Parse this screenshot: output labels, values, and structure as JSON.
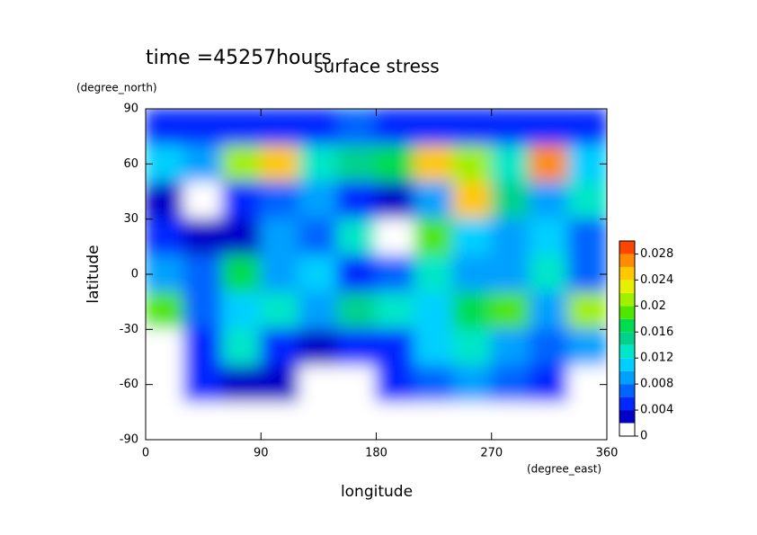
{
  "chart_data": {
    "type": "heatmap",
    "title": "surface stress",
    "subtitle": "time =45257hours",
    "x_label": "longitude",
    "x_unit": "(degree_east)",
    "y_label": "latitude",
    "y_unit": "(degree_north)",
    "x": [
      15,
      45,
      75,
      105,
      135,
      165,
      195,
      225,
      255,
      285,
      315,
      345
    ],
    "y": [
      80,
      60,
      40,
      20,
      0,
      -20,
      -40,
      -60,
      -80
    ],
    "z": [
      [
        0.004,
        0.004,
        0.004,
        0.004,
        0.004,
        0.006,
        0.004,
        0.004,
        0.004,
        0.004,
        0.004,
        0.004
      ],
      [
        0.01,
        0.008,
        0.02,
        0.024,
        0.012,
        0.014,
        0.016,
        0.024,
        0.02,
        0.012,
        0.026,
        0.01
      ],
      [
        0.002,
        0.001,
        0.004,
        0.006,
        0.008,
        0.004,
        0.002,
        0.008,
        0.024,
        0.014,
        0.008,
        0.012
      ],
      [
        0.004,
        0.003,
        0.002,
        0.008,
        0.006,
        0.012,
        0.001,
        0.018,
        0.01,
        0.008,
        0.01,
        0.006
      ],
      [
        0.008,
        0.006,
        0.016,
        0.008,
        0.01,
        0.004,
        0.006,
        0.012,
        0.008,
        0.008,
        0.012,
        0.006
      ],
      [
        0.018,
        0.006,
        0.01,
        0.012,
        0.008,
        0.014,
        0.012,
        0.01,
        0.016,
        0.018,
        0.008,
        0.02
      ],
      [
        0.001,
        0.004,
        0.012,
        0.004,
        0.002,
        0.004,
        0.004,
        0.01,
        0.012,
        0.008,
        0.006,
        0.008
      ],
      [
        0,
        0.004,
        0.002,
        0.003,
        0,
        0,
        0.004,
        0.006,
        0.008,
        0.006,
        0.004,
        0
      ],
      [
        0,
        0,
        0,
        0,
        0,
        0,
        0,
        0,
        0,
        0,
        0,
        0
      ]
    ],
    "xlim": [
      0,
      360
    ],
    "xticks": [
      0,
      90,
      180,
      270,
      360
    ],
    "ylim": [
      -90,
      90
    ],
    "yticks": [
      -90,
      -60,
      -30,
      0,
      30,
      60,
      90
    ],
    "clim": [
      0,
      0.03
    ],
    "cticks": [
      0,
      0.004,
      0.008,
      0.012,
      0.016,
      0.02,
      0.024,
      0.028
    ],
    "colors": [
      "#ffffff",
      "#0000c8",
      "#0028ff",
      "#0064ff",
      "#00a0ff",
      "#00d0ff",
      "#00e6c8",
      "#00d28c",
      "#00dc50",
      "#50e600",
      "#a0f000",
      "#e6f000",
      "#ffc800",
      "#ff8c00",
      "#ff4600"
    ]
  }
}
